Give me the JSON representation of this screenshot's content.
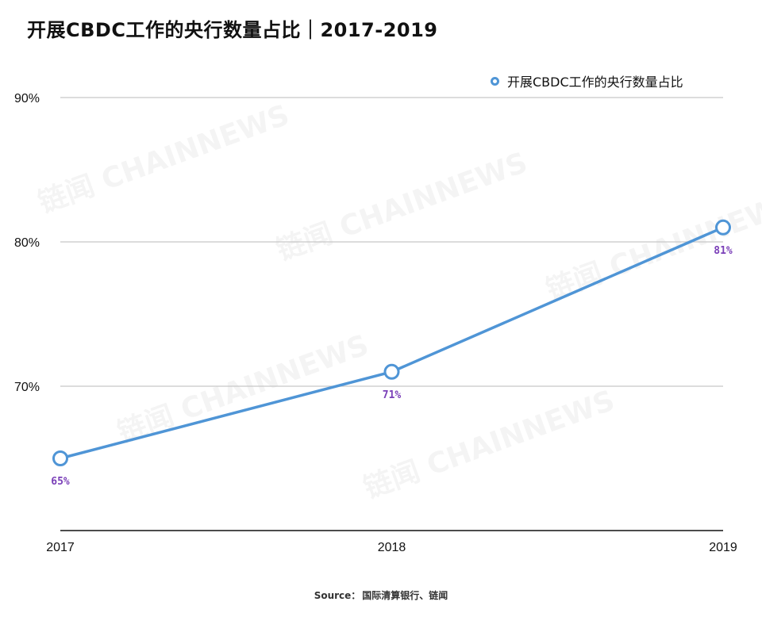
{
  "title": "开展CBDC工作的央行数量占比｜2017-2019",
  "legend_label": "开展CBDC工作的央行数量占比",
  "source_label": "Source：",
  "source_text": "国际清算银行、链闻",
  "watermark": "链闻 CHAINNEWS",
  "colors": {
    "line": "#4f95d6",
    "data_label": "#7a3fb8",
    "grid": "#c8c8c8",
    "axis": "#111111"
  },
  "chart_data": {
    "type": "line",
    "categories": [
      "2017",
      "2018",
      "2019"
    ],
    "series": [
      {
        "name": "开展CBDC工作的央行数量占比",
        "values": [
          65,
          71,
          81
        ]
      }
    ],
    "data_labels": [
      "65%",
      "71%",
      "81%"
    ],
    "yticks": [
      "70%",
      "80%",
      "90%"
    ],
    "ytick_values": [
      70,
      80,
      90
    ],
    "ylim": [
      60,
      90
    ],
    "grid": true,
    "legend_position": "top-right"
  }
}
